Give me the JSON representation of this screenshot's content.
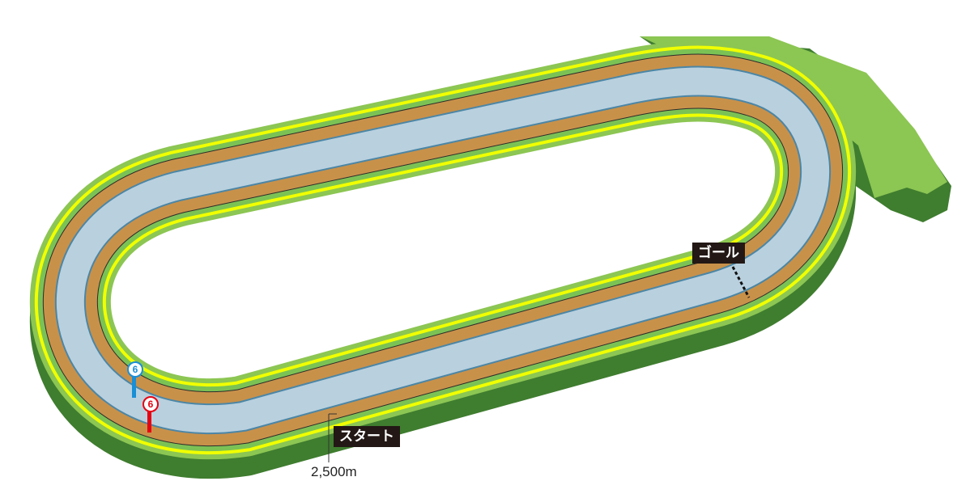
{
  "labels": {
    "goal": "ゴール",
    "start": "スタート",
    "distance": "2,500m"
  },
  "markers": [
    {
      "text": "6",
      "color": "#1a8fd6"
    },
    {
      "text": "6",
      "color": "#e60012"
    }
  ],
  "colors": {
    "turf": "#8cc653",
    "turf_side": "#3f7d2f",
    "rail_line": "#f0ff00",
    "dirt": "#c8914a",
    "inner_course": "#b9d0de",
    "label_bg": "#231815"
  }
}
